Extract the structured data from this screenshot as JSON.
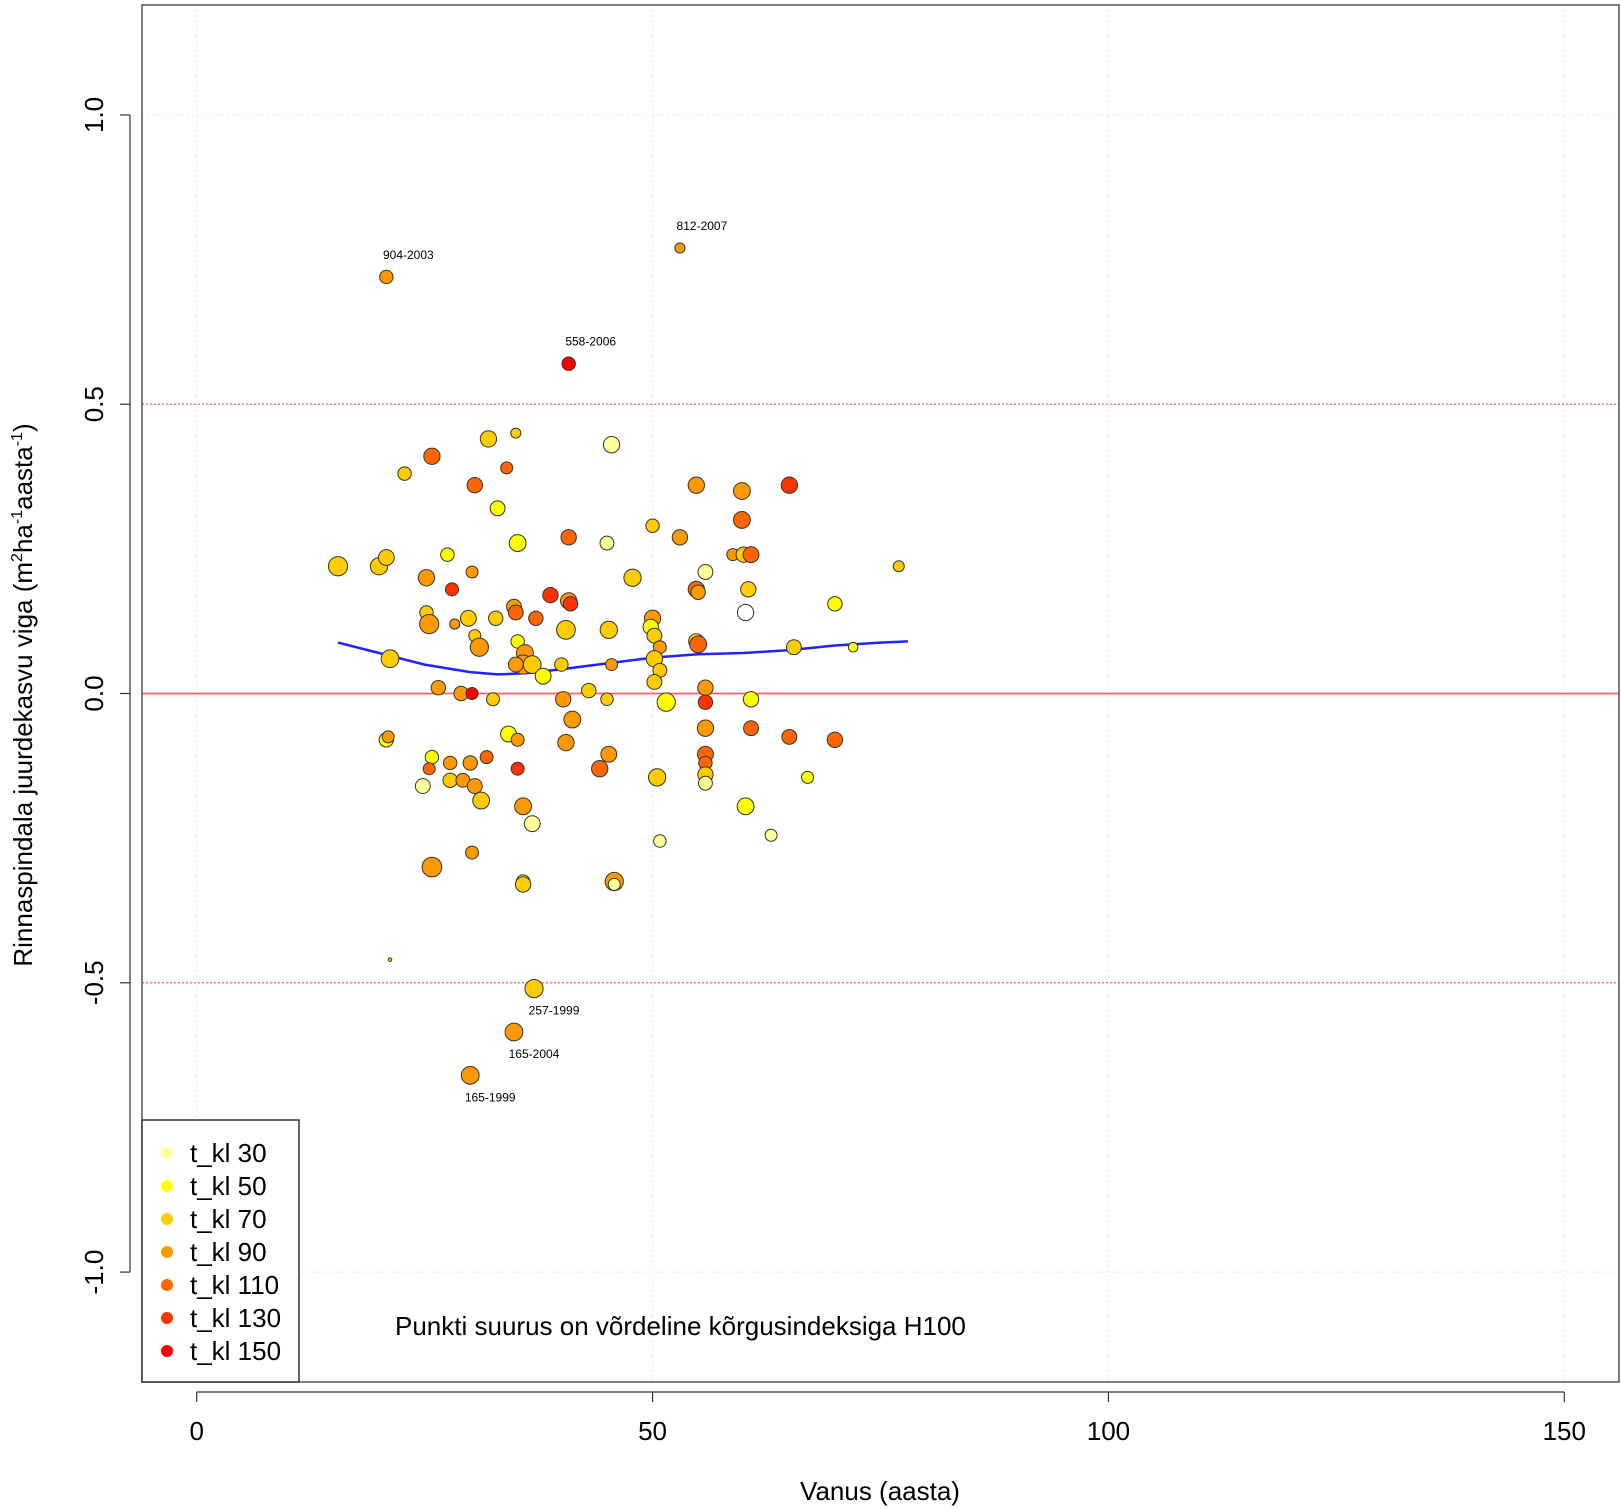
{
  "chart_data": {
    "type": "scatter",
    "xlabel": "Vanus (aasta)",
    "ylabel": {
      "prefix": "Rinnaspindala juurdekasvu viga  (m",
      "sup1": "2",
      "mid1": "ha",
      "sup2": "-1",
      "mid2": "aasta",
      "sup3": "-1",
      "suffix": ")"
    },
    "xlim": [
      -6,
      156
    ],
    "ylim": [
      -1.19,
      1.19
    ],
    "x_ticks": [
      {
        "value": 0,
        "label": "0"
      },
      {
        "value": 50,
        "label": "50"
      },
      {
        "value": 100,
        "label": "100"
      },
      {
        "value": 150,
        "label": "150"
      }
    ],
    "y_ticks": [
      {
        "value": -1.0,
        "label": "-1.0"
      },
      {
        "value": -0.5,
        "label": "-0.5"
      },
      {
        "value": 0.0,
        "label": "0.0"
      },
      {
        "value": 0.5,
        "label": "0.5"
      },
      {
        "value": 1.0,
        "label": "1.0"
      }
    ],
    "grid": true,
    "reference_lines": [
      {
        "y": 0.0,
        "style": "solid",
        "color": "#ff6060"
      },
      {
        "y": 0.5,
        "style": "dotted",
        "color": "#ff6060"
      },
      {
        "y": -0.5,
        "style": "dotted",
        "color": "#ff6060"
      }
    ],
    "colors": {
      "t_kl 30": "#ffff99",
      "t_kl 50": "#ffff00",
      "t_kl 70": "#ffcc00",
      "t_kl 90": "#ff9900",
      "t_kl 110": "#ff6600",
      "t_kl 130": "#ff3300",
      "t_kl 150": "#ff0000",
      "none": "#ffffff"
    },
    "legend": {
      "position": "bottom-left",
      "entries": [
        "t_kl 30",
        "t_kl 50",
        "t_kl 70",
        "t_kl 90",
        "t_kl 110",
        "t_kl 130",
        "t_kl 150"
      ]
    },
    "note": "Punkti suurus on võrdeline kõrgusindeksiga H100",
    "smooth_line": {
      "color": "#2222ff",
      "x": [
        15.5,
        20,
        25,
        30,
        33,
        36,
        40,
        45,
        50,
        55,
        60,
        65,
        70,
        75,
        78
      ],
      "y": [
        0.088,
        0.07,
        0.05,
        0.037,
        0.033,
        0.035,
        0.042,
        0.052,
        0.062,
        0.068,
        0.07,
        0.075,
        0.083,
        0.088,
        0.09
      ]
    },
    "points": [
      {
        "x": 20.8,
        "y": 0.72,
        "s": 0.56,
        "c": "t_kl 90",
        "label": "904-2003"
      },
      {
        "x": 53.0,
        "y": 0.77,
        "s": 0.42,
        "c": "t_kl 90",
        "label": "812-2007"
      },
      {
        "x": 40.8,
        "y": 0.57,
        "s": 0.56,
        "c": "t_kl 150",
        "label": "558-2006"
      },
      {
        "x": 37.0,
        "y": -0.51,
        "s": 0.76,
        "c": "t_kl 70",
        "label": "257-1999"
      },
      {
        "x": 34.8,
        "y": -0.585,
        "s": 0.74,
        "c": "t_kl 90",
        "label": "165-2004"
      },
      {
        "x": 30.0,
        "y": -0.66,
        "s": 0.74,
        "c": "t_kl 90",
        "label": "165-1999"
      },
      {
        "x": 15.5,
        "y": 0.22,
        "s": 0.8,
        "c": "t_kl 70"
      },
      {
        "x": 20.0,
        "y": 0.22,
        "s": 0.72,
        "c": "t_kl 70"
      },
      {
        "x": 20.8,
        "y": 0.235,
        "s": 0.66,
        "c": "t_kl 70"
      },
      {
        "x": 21.2,
        "y": 0.06,
        "s": 0.74,
        "c": "t_kl 70"
      },
      {
        "x": 20.8,
        "y": -0.08,
        "s": 0.6,
        "c": "t_kl 50"
      },
      {
        "x": 21.0,
        "y": -0.075,
        "s": 0.5,
        "c": "t_kl 90"
      },
      {
        "x": 21.2,
        "y": -0.46,
        "s": 0.15,
        "c": "t_kl 70"
      },
      {
        "x": 22.8,
        "y": 0.38,
        "s": 0.56,
        "c": "t_kl 70"
      },
      {
        "x": 25.8,
        "y": 0.41,
        "s": 0.68,
        "c": "t_kl 110"
      },
      {
        "x": 27.5,
        "y": 0.24,
        "s": 0.56,
        "c": "t_kl 50"
      },
      {
        "x": 25.2,
        "y": 0.2,
        "s": 0.68,
        "c": "t_kl 90"
      },
      {
        "x": 28.0,
        "y": 0.18,
        "s": 0.54,
        "c": "t_kl 130"
      },
      {
        "x": 25.2,
        "y": 0.14,
        "s": 0.56,
        "c": "t_kl 70"
      },
      {
        "x": 25.5,
        "y": 0.12,
        "s": 0.8,
        "c": "t_kl 90"
      },
      {
        "x": 28.3,
        "y": 0.12,
        "s": 0.42,
        "c": "t_kl 90"
      },
      {
        "x": 26.5,
        "y": 0.01,
        "s": 0.6,
        "c": "t_kl 90"
      },
      {
        "x": 30.2,
        "y": 0.21,
        "s": 0.5,
        "c": "t_kl 90"
      },
      {
        "x": 30.5,
        "y": 0.36,
        "s": 0.64,
        "c": "t_kl 110"
      },
      {
        "x": 32.0,
        "y": 0.44,
        "s": 0.68,
        "c": "t_kl 70"
      },
      {
        "x": 35.0,
        "y": 0.45,
        "s": 0.42,
        "c": "t_kl 70"
      },
      {
        "x": 34.0,
        "y": 0.39,
        "s": 0.5,
        "c": "t_kl 110"
      },
      {
        "x": 33.0,
        "y": 0.32,
        "s": 0.62,
        "c": "t_kl 50"
      },
      {
        "x": 29.8,
        "y": 0.13,
        "s": 0.66,
        "c": "t_kl 70"
      },
      {
        "x": 30.5,
        "y": 0.1,
        "s": 0.5,
        "c": "t_kl 70"
      },
      {
        "x": 31.0,
        "y": 0.08,
        "s": 0.76,
        "c": "t_kl 90"
      },
      {
        "x": 32.8,
        "y": 0.13,
        "s": 0.6,
        "c": "t_kl 70"
      },
      {
        "x": 34.8,
        "y": 0.15,
        "s": 0.62,
        "c": "t_kl 90"
      },
      {
        "x": 35.0,
        "y": 0.14,
        "s": 0.62,
        "c": "t_kl 110"
      },
      {
        "x": 35.2,
        "y": 0.26,
        "s": 0.7,
        "c": "t_kl 50"
      },
      {
        "x": 35.2,
        "y": 0.09,
        "s": 0.56,
        "c": "t_kl 50"
      },
      {
        "x": 36.0,
        "y": 0.07,
        "s": 0.7,
        "c": "t_kl 90"
      },
      {
        "x": 35.8,
        "y": 0.05,
        "s": 0.8,
        "c": "t_kl 90"
      },
      {
        "x": 36.8,
        "y": 0.05,
        "s": 0.74,
        "c": "t_kl 70"
      },
      {
        "x": 37.2,
        "y": 0.13,
        "s": 0.6,
        "c": "t_kl 110"
      },
      {
        "x": 38.0,
        "y": 0.03,
        "s": 0.66,
        "c": "t_kl 50"
      },
      {
        "x": 38.8,
        "y": 0.17,
        "s": 0.64,
        "c": "t_kl 130"
      },
      {
        "x": 40.0,
        "y": 0.05,
        "s": 0.56,
        "c": "t_kl 70"
      },
      {
        "x": 40.5,
        "y": 0.11,
        "s": 0.78,
        "c": "t_kl 70"
      },
      {
        "x": 40.8,
        "y": 0.27,
        "s": 0.64,
        "c": "t_kl 110"
      },
      {
        "x": 40.8,
        "y": 0.16,
        "s": 0.68,
        "c": "t_kl 90"
      },
      {
        "x": 41.0,
        "y": 0.155,
        "s": 0.6,
        "c": "t_kl 130"
      },
      {
        "x": 29.0,
        "y": 0.0,
        "s": 0.6,
        "c": "t_kl 90"
      },
      {
        "x": 30.2,
        "y": 0.0,
        "s": 0.5,
        "c": "t_kl 150"
      },
      {
        "x": 32.5,
        "y": -0.01,
        "s": 0.54,
        "c": "t_kl 70"
      },
      {
        "x": 35.0,
        "y": 0.05,
        "s": 0.62,
        "c": "t_kl 90"
      },
      {
        "x": 34.2,
        "y": -0.07,
        "s": 0.66,
        "c": "t_kl 50"
      },
      {
        "x": 35.2,
        "y": -0.08,
        "s": 0.54,
        "c": "t_kl 90"
      },
      {
        "x": 35.2,
        "y": -0.13,
        "s": 0.54,
        "c": "t_kl 130"
      },
      {
        "x": 30.0,
        "y": -0.12,
        "s": 0.6,
        "c": "t_kl 90"
      },
      {
        "x": 31.8,
        "y": -0.11,
        "s": 0.54,
        "c": "t_kl 110"
      },
      {
        "x": 25.8,
        "y": -0.11,
        "s": 0.56,
        "c": "t_kl 50"
      },
      {
        "x": 25.5,
        "y": -0.13,
        "s": 0.5,
        "c": "t_kl 110"
      },
      {
        "x": 27.8,
        "y": -0.12,
        "s": 0.56,
        "c": "t_kl 90"
      },
      {
        "x": 24.8,
        "y": -0.16,
        "s": 0.62,
        "c": "t_kl 30"
      },
      {
        "x": 27.8,
        "y": -0.15,
        "s": 0.6,
        "c": "t_kl 70"
      },
      {
        "x": 29.2,
        "y": -0.15,
        "s": 0.58,
        "c": "t_kl 90"
      },
      {
        "x": 30.5,
        "y": -0.16,
        "s": 0.62,
        "c": "t_kl 90"
      },
      {
        "x": 31.2,
        "y": -0.185,
        "s": 0.7,
        "c": "t_kl 70"
      },
      {
        "x": 30.2,
        "y": -0.275,
        "s": 0.54,
        "c": "t_kl 90"
      },
      {
        "x": 25.8,
        "y": -0.3,
        "s": 0.82,
        "c": "t_kl 90"
      },
      {
        "x": 35.8,
        "y": -0.195,
        "s": 0.7,
        "c": "t_kl 90"
      },
      {
        "x": 36.8,
        "y": -0.225,
        "s": 0.66,
        "c": "t_kl 30"
      },
      {
        "x": 35.8,
        "y": -0.325,
        "s": 0.56,
        "c": "t_kl 50"
      },
      {
        "x": 35.8,
        "y": -0.33,
        "s": 0.64,
        "c": "t_kl 70"
      },
      {
        "x": 40.5,
        "y": -0.085,
        "s": 0.68,
        "c": "t_kl 90"
      },
      {
        "x": 40.2,
        "y": -0.01,
        "s": 0.64,
        "c": "t_kl 90"
      },
      {
        "x": 41.2,
        "y": -0.045,
        "s": 0.7,
        "c": "t_kl 90"
      },
      {
        "x": 43.0,
        "y": 0.005,
        "s": 0.6,
        "c": "t_kl 70"
      },
      {
        "x": 45.0,
        "y": 0.26,
        "s": 0.58,
        "c": "t_kl 30"
      },
      {
        "x": 45.5,
        "y": 0.43,
        "s": 0.68,
        "c": "t_kl 30"
      },
      {
        "x": 45.2,
        "y": 0.11,
        "s": 0.72,
        "c": "t_kl 70"
      },
      {
        "x": 45.5,
        "y": 0.05,
        "s": 0.5,
        "c": "t_kl 90"
      },
      {
        "x": 45.0,
        "y": -0.01,
        "s": 0.52,
        "c": "t_kl 70"
      },
      {
        "x": 45.2,
        "y": -0.105,
        "s": 0.66,
        "c": "t_kl 90"
      },
      {
        "x": 44.2,
        "y": -0.13,
        "s": 0.68,
        "c": "t_kl 110"
      },
      {
        "x": 45.8,
        "y": -0.325,
        "s": 0.76,
        "c": "t_kl 90"
      },
      {
        "x": 45.8,
        "y": -0.33,
        "s": 0.5,
        "c": "t_kl 30"
      },
      {
        "x": 47.8,
        "y": 0.2,
        "s": 0.72,
        "c": "t_kl 70"
      },
      {
        "x": 50.0,
        "y": 0.29,
        "s": 0.56,
        "c": "t_kl 70"
      },
      {
        "x": 50.0,
        "y": 0.13,
        "s": 0.68,
        "c": "t_kl 90"
      },
      {
        "x": 49.8,
        "y": 0.115,
        "s": 0.64,
        "c": "t_kl 50"
      },
      {
        "x": 50.2,
        "y": 0.1,
        "s": 0.62,
        "c": "t_kl 70"
      },
      {
        "x": 50.8,
        "y": 0.08,
        "s": 0.54,
        "c": "t_kl 90"
      },
      {
        "x": 50.2,
        "y": 0.06,
        "s": 0.68,
        "c": "t_kl 70"
      },
      {
        "x": 50.8,
        "y": 0.04,
        "s": 0.58,
        "c": "t_kl 70"
      },
      {
        "x": 50.2,
        "y": 0.02,
        "s": 0.62,
        "c": "t_kl 70"
      },
      {
        "x": 51.5,
        "y": -0.015,
        "s": 0.76,
        "c": "t_kl 50"
      },
      {
        "x": 50.5,
        "y": -0.145,
        "s": 0.72,
        "c": "t_kl 70"
      },
      {
        "x": 50.8,
        "y": -0.255,
        "s": 0.52,
        "c": "t_kl 30"
      },
      {
        "x": 53.0,
        "y": 0.27,
        "s": 0.64,
        "c": "t_kl 90"
      },
      {
        "x": 54.8,
        "y": 0.36,
        "s": 0.68,
        "c": "t_kl 90"
      },
      {
        "x": 54.8,
        "y": 0.18,
        "s": 0.68,
        "c": "t_kl 110"
      },
      {
        "x": 55.0,
        "y": 0.175,
        "s": 0.6,
        "c": "t_kl 90"
      },
      {
        "x": 55.8,
        "y": 0.21,
        "s": 0.62,
        "c": "t_kl 30"
      },
      {
        "x": 54.8,
        "y": 0.09,
        "s": 0.64,
        "c": "t_kl 50"
      },
      {
        "x": 55.0,
        "y": 0.085,
        "s": 0.7,
        "c": "t_kl 110"
      },
      {
        "x": 55.8,
        "y": 0.01,
        "s": 0.64,
        "c": "t_kl 90"
      },
      {
        "x": 55.8,
        "y": -0.015,
        "s": 0.6,
        "c": "t_kl 130"
      },
      {
        "x": 55.8,
        "y": -0.06,
        "s": 0.68,
        "c": "t_kl 90"
      },
      {
        "x": 55.8,
        "y": -0.105,
        "s": 0.66,
        "c": "t_kl 110"
      },
      {
        "x": 55.8,
        "y": -0.12,
        "s": 0.56,
        "c": "t_kl 110"
      },
      {
        "x": 55.8,
        "y": -0.14,
        "s": 0.64,
        "c": "t_kl 70"
      },
      {
        "x": 55.8,
        "y": -0.155,
        "s": 0.58,
        "c": "t_kl 30"
      },
      {
        "x": 58.8,
        "y": 0.24,
        "s": 0.5,
        "c": "t_kl 90"
      },
      {
        "x": 59.8,
        "y": 0.35,
        "s": 0.7,
        "c": "t_kl 90"
      },
      {
        "x": 59.8,
        "y": 0.3,
        "s": 0.7,
        "c": "t_kl 110"
      },
      {
        "x": 60.0,
        "y": 0.24,
        "s": 0.64,
        "c": "t_kl 70"
      },
      {
        "x": 60.8,
        "y": 0.24,
        "s": 0.66,
        "c": "t_kl 110"
      },
      {
        "x": 60.2,
        "y": 0.14,
        "s": 0.68,
        "c": "none"
      },
      {
        "x": 60.5,
        "y": 0.18,
        "s": 0.64,
        "c": "t_kl 70"
      },
      {
        "x": 60.8,
        "y": -0.01,
        "s": 0.64,
        "c": "t_kl 50"
      },
      {
        "x": 60.8,
        "y": -0.06,
        "s": 0.62,
        "c": "t_kl 110"
      },
      {
        "x": 60.2,
        "y": -0.195,
        "s": 0.7,
        "c": "t_kl 50"
      },
      {
        "x": 63.0,
        "y": -0.245,
        "s": 0.5,
        "c": "t_kl 30"
      },
      {
        "x": 65.0,
        "y": 0.36,
        "s": 0.68,
        "c": "t_kl 130"
      },
      {
        "x": 65.0,
        "y": -0.075,
        "s": 0.62,
        "c": "t_kl 110"
      },
      {
        "x": 65.5,
        "y": 0.08,
        "s": 0.62,
        "c": "t_kl 70"
      },
      {
        "x": 67.0,
        "y": -0.145,
        "s": 0.5,
        "c": "t_kl 50"
      },
      {
        "x": 70.0,
        "y": 0.155,
        "s": 0.6,
        "c": "t_kl 50"
      },
      {
        "x": 70.0,
        "y": -0.08,
        "s": 0.64,
        "c": "t_kl 110"
      },
      {
        "x": 72.0,
        "y": 0.08,
        "s": 0.4,
        "c": "t_kl 50"
      },
      {
        "x": 77.0,
        "y": 0.22,
        "s": 0.46,
        "c": "t_kl 70"
      }
    ]
  }
}
